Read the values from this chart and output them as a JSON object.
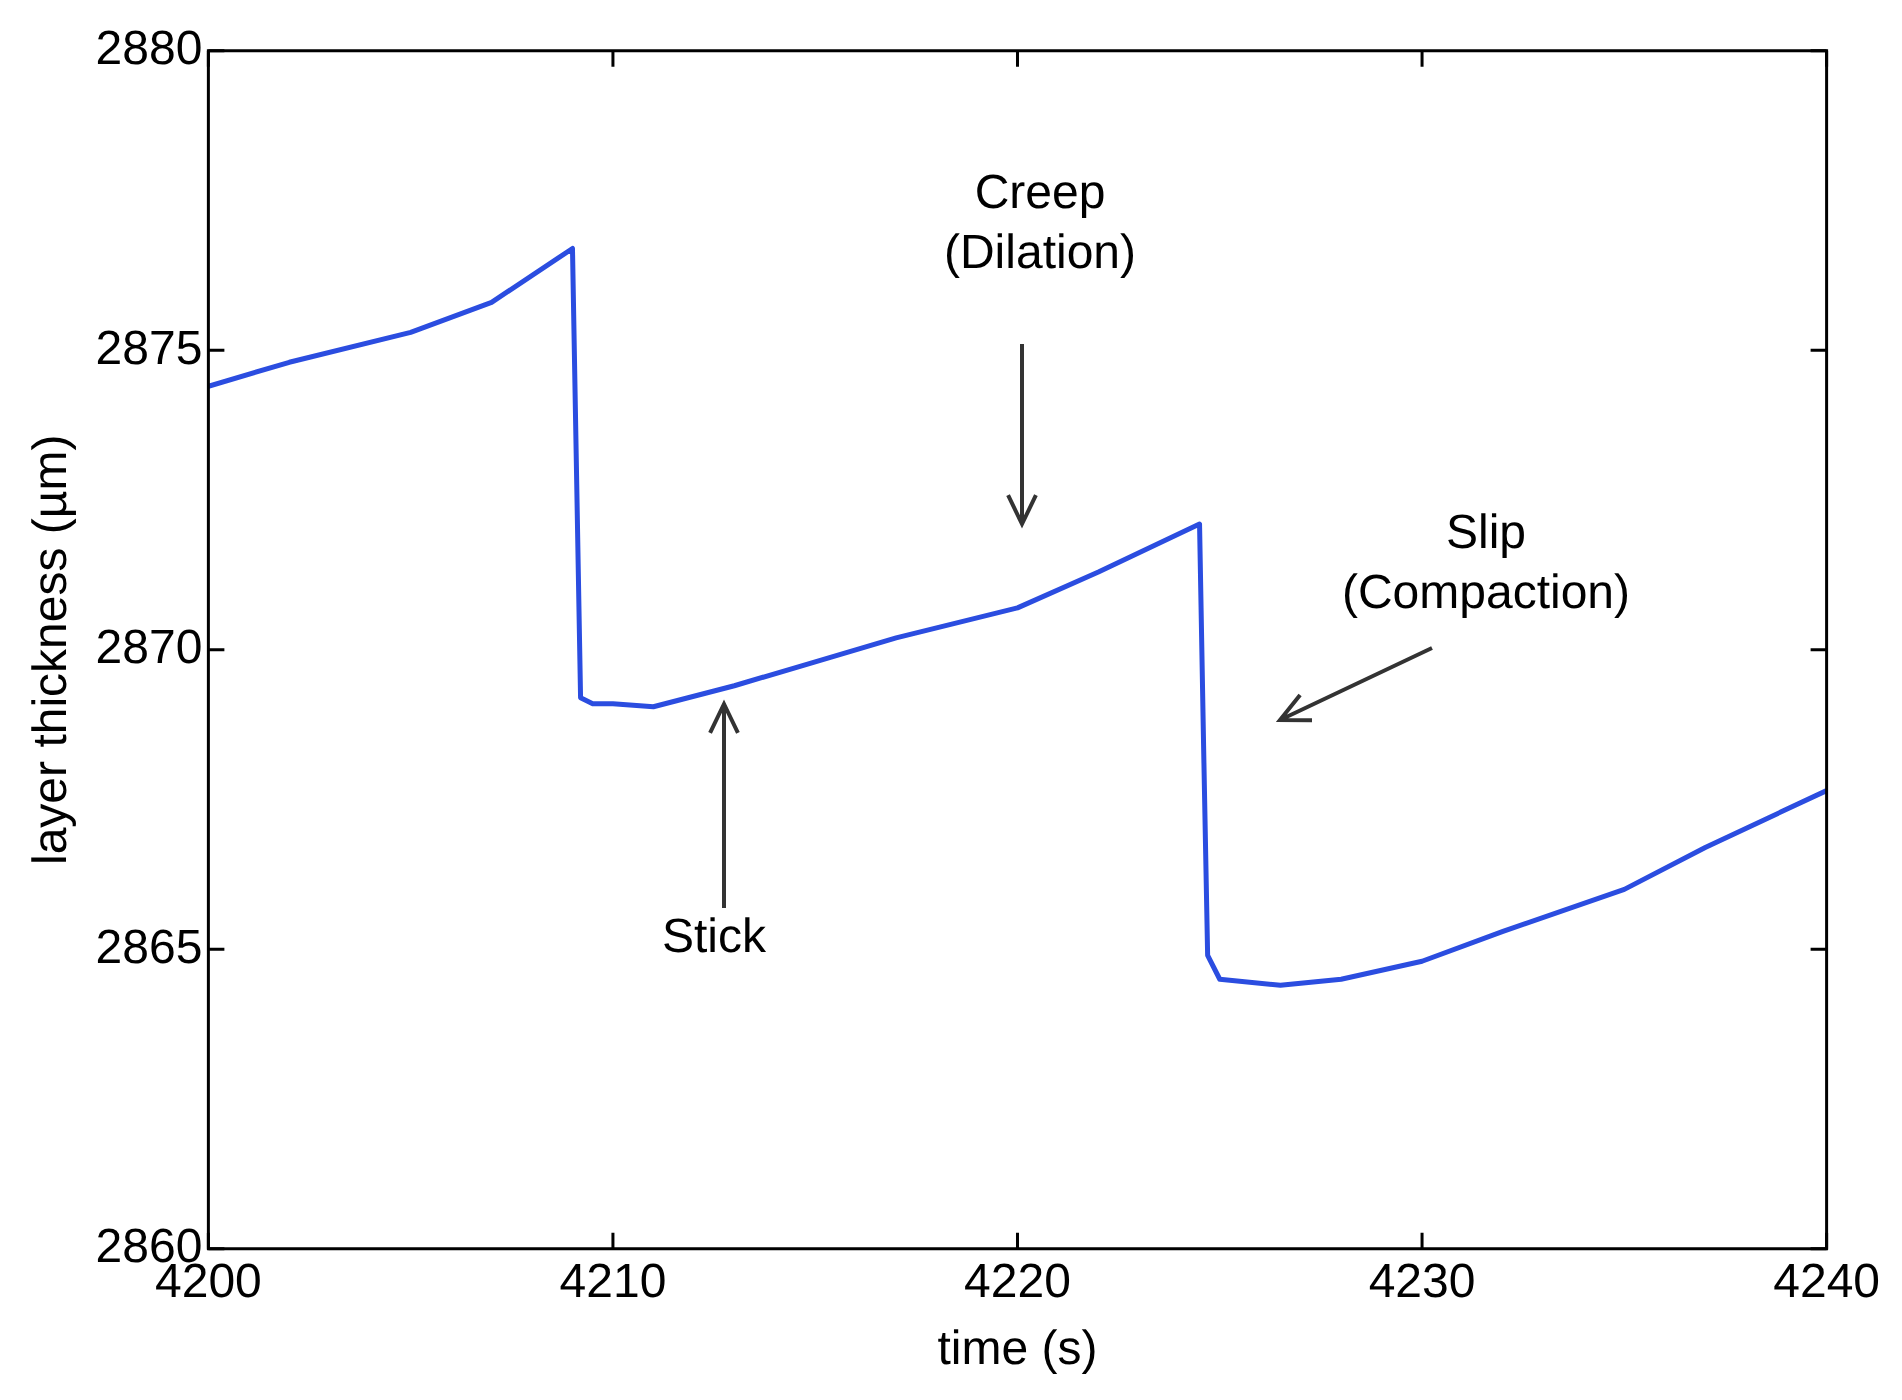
{
  "chart_data": {
    "type": "line",
    "xlabel": "time (s)",
    "ylabel": "layer thickness (µm)",
    "x": [
      4200,
      4202,
      4205,
      4207,
      4209,
      4209.2,
      4209.5,
      4210,
      4211,
      4213,
      4215,
      4217,
      4220,
      4222,
      4224.5,
      4224.6,
      4224.7,
      4225,
      4226.5,
      4228,
      4230,
      4232,
      4235,
      4237,
      4240
    ],
    "series": [
      {
        "color": "#2b4de0",
        "values": [
          2874.4,
          2874.8,
          2875.3,
          2875.8,
          2876.7,
          2869.2,
          2869.1,
          2869.1,
          2869.05,
          2869.4,
          2869.8,
          2870.2,
          2870.7,
          2871.3,
          2872.1,
          2868.4,
          2864.9,
          2864.5,
          2864.4,
          2864.5,
          2864.8,
          2865.3,
          2866.0,
          2866.7,
          2867.65
        ]
      }
    ],
    "xlim": [
      4200,
      4240
    ],
    "xticks": [
      4200,
      4210,
      4220,
      4230,
      4240
    ],
    "ylim": [
      2860,
      2880
    ],
    "yticks": [
      2860,
      2865,
      2870,
      2875,
      2880
    ],
    "annotations": [
      "Stick",
      "Creep\n(Dilation)",
      "Slip\n(Compaction)"
    ],
    "grid": false,
    "legend": false,
    "marker": "none",
    "line_style": "solid"
  }
}
